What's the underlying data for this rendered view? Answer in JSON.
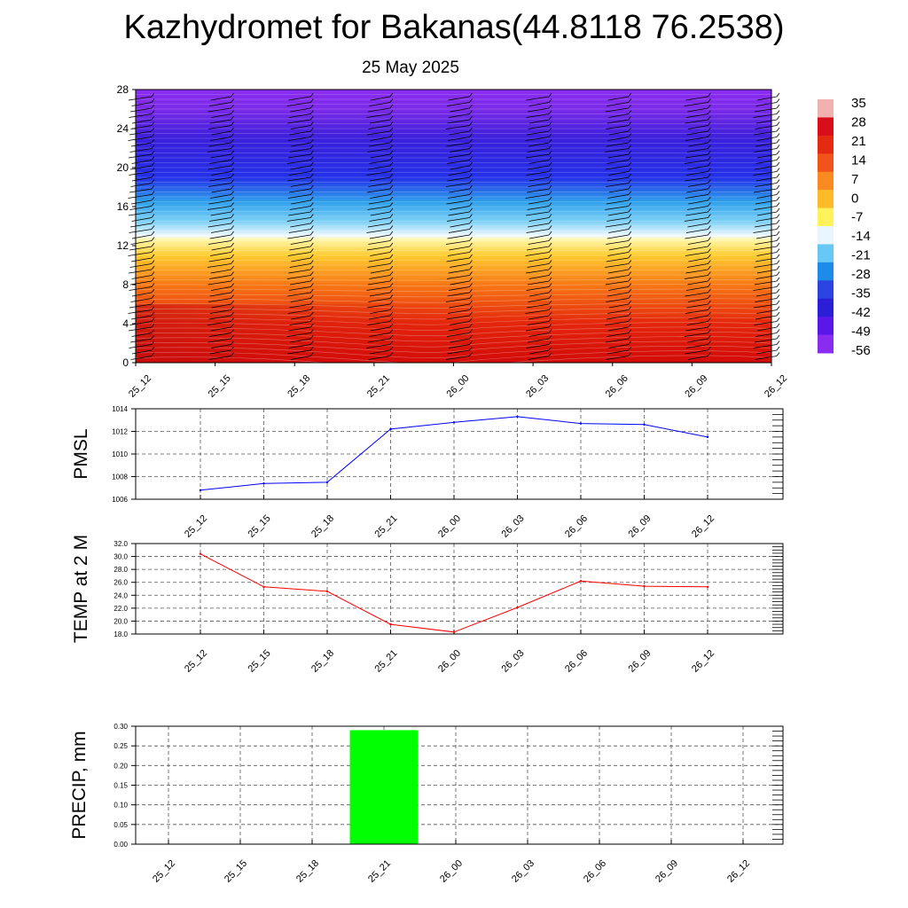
{
  "title": "Kazhydromet for Bakanas(44.8118 76.2538)",
  "subtitle": "25 May 2025",
  "chart_data": [
    {
      "type": "heatmap",
      "name": "vertical-temperature-cross-section",
      "x": [
        "25_12",
        "25_15",
        "25_18",
        "25_21",
        "26_00",
        "26_03",
        "26_06",
        "26_09",
        "26_12"
      ],
      "y_ticks": [
        0,
        4,
        8,
        12,
        16,
        20,
        24,
        28
      ],
      "ylim": [
        0,
        28
      ],
      "colorbar": {
        "labels": [
          "35",
          "28",
          "21",
          "14",
          "7",
          "0",
          "-7",
          "-14",
          "-21",
          "-28",
          "-35",
          "-42",
          "-49",
          "-56"
        ],
        "colors": [
          "#f3b0b0",
          "#d80f1a",
          "#e52a12",
          "#f2531a",
          "#f98a20",
          "#fdbb2a",
          "#fff25a",
          "#e8f6ff",
          "#67c8f5",
          "#1f8be8",
          "#2b43e0",
          "#2a1fd6",
          "#5a18e8",
          "#8a2cf0"
        ]
      },
      "levels_colors": {
        "0": "#d20a08",
        "4": "#e4260c",
        "8": "#f87815",
        "11": "#ffcc30",
        "12.6": "#fff6a8",
        "13": "#f2faff",
        "14.5": "#7cd0f5",
        "16.5": "#2fa0ec",
        "19": "#2330e8",
        "23": "#3b1fdb",
        "26": "#7b2ae8",
        "28": "#8a2cf0"
      }
    },
    {
      "type": "line",
      "name": "pmsl",
      "ylabel": "PMSL",
      "categories": [
        "25_12",
        "25_15",
        "25_18",
        "25_21",
        "26_00",
        "26_03",
        "26_06",
        "26_09",
        "26_12"
      ],
      "values": [
        1006.8,
        1007.4,
        1007.5,
        1012.2,
        1012.8,
        1013.3,
        1012.7,
        1012.6,
        1011.5
      ],
      "ylim": [
        1006,
        1014
      ],
      "y_ticks": [
        "1006",
        "1008",
        "1010",
        "1012",
        "1014"
      ],
      "color": "#0000ff"
    },
    {
      "type": "line",
      "name": "temp-2m",
      "ylabel": "TEMP at 2 M",
      "categories": [
        "25_12",
        "25_15",
        "25_18",
        "25_21",
        "26_00",
        "26_03",
        "26_06",
        "26_09",
        "26_12"
      ],
      "values": [
        30.4,
        25.3,
        24.6,
        19.5,
        18.3,
        22.1,
        26.2,
        25.4,
        25.3
      ],
      "ylim": [
        18,
        32
      ],
      "y_ticks": [
        "18.0",
        "20.0",
        "22.0",
        "24.0",
        "26.0",
        "28.0",
        "30.0",
        "32.0"
      ],
      "color": "#ff0000"
    },
    {
      "type": "bar",
      "name": "precip",
      "ylabel": "PRECIP, mm",
      "categories": [
        "25_12",
        "25_15",
        "25_18",
        "25_21",
        "26_00",
        "26_03",
        "26_06",
        "26_09",
        "26_12"
      ],
      "values": [
        0,
        0,
        0,
        0.29,
        0,
        0,
        0,
        0,
        0
      ],
      "ylim": [
        0,
        0.3
      ],
      "y_ticks": [
        "0.00",
        "0.05",
        "0.10",
        "0.15",
        "0.20",
        "0.25",
        "0.30"
      ],
      "color": "#00ff00"
    }
  ]
}
